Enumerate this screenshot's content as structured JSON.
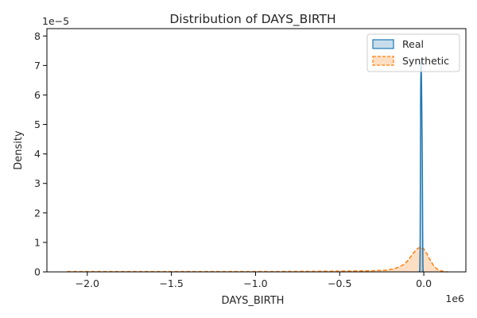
{
  "chart_data": {
    "type": "area",
    "title": "Distribution of DAYS_BIRTH",
    "xlabel": "DAYS_BIRTH",
    "ylabel": "Density",
    "x_scale_label": "1e6",
    "y_scale_label": "1e−5",
    "x_scale": 1000000,
    "y_scale": 1e-05,
    "xlim": [
      -2240000,
      250000
    ],
    "ylim": [
      0,
      8.25e-05
    ],
    "x_ticks": [
      -2000000,
      -1500000,
      -1000000,
      -500000,
      0
    ],
    "x_tick_labels": [
      "−2.0",
      "−1.5",
      "−1.0",
      "−0.5",
      "0.0"
    ],
    "y_ticks": [
      0,
      1e-05,
      2e-05,
      3e-05,
      4e-05,
      5e-05,
      6e-05,
      7e-05,
      8e-05
    ],
    "y_tick_labels": [
      "0",
      "1",
      "2",
      "3",
      "4",
      "5",
      "6",
      "7",
      "8"
    ],
    "grid": false,
    "legend_position": "top-right",
    "series": [
      {
        "name": "Real",
        "color": "#1f77b4",
        "line_style": "solid",
        "x": [
          -29000,
          -26000,
          -24000,
          -22000,
          -21000,
          -20000,
          -19000,
          -18000,
          -17500,
          -17000,
          -16500,
          -16000,
          -15500,
          -15000,
          -14500,
          -14000,
          -13000,
          -12000,
          -11000,
          -10000,
          -9000,
          -8000,
          -7000,
          -6000,
          -5000,
          -4000,
          -3000
        ],
        "y": [
          0,
          1e-07,
          1e-06,
          8e-06,
          2e-05,
          4e-05,
          5.8e-05,
          6.6e-05,
          6.2e-05,
          6.9e-05,
          6.5e-05,
          7.1e-05,
          6.6e-05,
          7.2e-05,
          6.8e-05,
          6.6e-05,
          6.1e-05,
          5.6e-05,
          5e-05,
          4.5e-05,
          3.8e-05,
          2.8e-05,
          1.7e-05,
          7e-06,
          2e-06,
          2e-07,
          0
        ]
      },
      {
        "name": "Synthetic",
        "color": "#ff7f0e",
        "line_style": "dashed",
        "x": [
          -2120000,
          -1800000,
          -1500000,
          -1200000,
          -900000,
          -600000,
          -400000,
          -300000,
          -220000,
          -180000,
          -150000,
          -120000,
          -100000,
          -80000,
          -60000,
          -40000,
          -20000,
          0,
          20000,
          40000,
          60000,
          80000,
          100000,
          120000,
          140000
        ],
        "y": [
          1e-07,
          1e-07,
          1e-07,
          1e-07,
          1e-07,
          2e-07,
          3e-07,
          4e-07,
          6e-07,
          1e-06,
          1.6e-06,
          2.5e-06,
          3.5e-06,
          5e-06,
          6.5e-06,
          7.8e-06,
          8.4e-06,
          7.8e-06,
          6e-06,
          3.8e-06,
          2e-06,
          9e-07,
          4e-07,
          1e-07,
          0
        ]
      }
    ]
  }
}
